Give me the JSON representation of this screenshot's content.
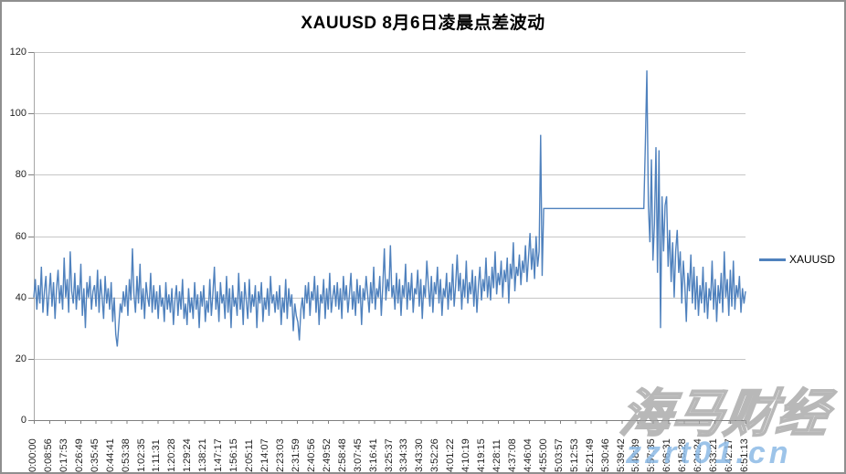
{
  "title": "XAUUSD 8月6日凌晨点差波动",
  "legend": {
    "label": "XAUUSD"
  },
  "watermarks": {
    "brand": "海马财经",
    "site": "zzrt01.cn"
  },
  "colors": {
    "series_line": "#4f81bd",
    "gridline": "#c6c6c6",
    "axis_line": "#808080",
    "left_axis_line": "#a6a6a6",
    "tick": "#808080",
    "frame_border": "#8f8f8f",
    "watermark_blue": "#8cbae6"
  },
  "chart_data": {
    "type": "line",
    "title": "XAUUSD 8月6日凌晨点差波动",
    "xlabel": "",
    "ylabel": "",
    "ylim": [
      0,
      120
    ],
    "yticks": [
      0,
      20,
      40,
      60,
      80,
      100,
      120
    ],
    "grid": true,
    "legend_position": "right",
    "xtick_labels": [
      "0:00:00",
      "0:08:56",
      "0:17:53",
      "0:26:49",
      "0:35:45",
      "0:44:41",
      "0:53:38",
      "1:02:35",
      "1:11:31",
      "1:20:28",
      "1:29:24",
      "1:38:21",
      "1:47:17",
      "1:56:15",
      "2:05:11",
      "2:14:07",
      "2:23:03",
      "2:31:59",
      "2:40:56",
      "2:49:52",
      "2:58:48",
      "3:07:45",
      "3:16:41",
      "3:25:37",
      "3:34:33",
      "3:43:30",
      "3:52:26",
      "4:01:22",
      "4:10:19",
      "4:19:15",
      "4:28:11",
      "4:37:08",
      "4:46:04",
      "4:55:00",
      "5:03:57",
      "5:12:53",
      "5:21:49",
      "5:30:46",
      "5:39:42",
      "5:48:39",
      "5:57:35",
      "6:06:31",
      "6:15:28",
      "6:24:24",
      "6:33:21",
      "6:42:17",
      "6:51:13"
    ],
    "series": [
      {
        "name": "XAUUSD",
        "color": "#4f81bd",
        "sample_interval_seconds": 52.6,
        "values": [
          40,
          46,
          36,
          44,
          38,
          50,
          35,
          42,
          47,
          34,
          41,
          48,
          37,
          45,
          33,
          43,
          49,
          38,
          44,
          36,
          53,
          40,
          46,
          35,
          55,
          42,
          38,
          48,
          36,
          44,
          39,
          51,
          34,
          43,
          30,
          45,
          40,
          47,
          36,
          42,
          44,
          37,
          49,
          35,
          46,
          40,
          33,
          47,
          38,
          43,
          36,
          45,
          32,
          40,
          28,
          24,
          31,
          38,
          35,
          42,
          37,
          44,
          34,
          46,
          39,
          56,
          41,
          35,
          47,
          38,
          51,
          36,
          43,
          33,
          45,
          40,
          37,
          48,
          35,
          44,
          36,
          42,
          33,
          44,
          37,
          40,
          32,
          45,
          36,
          41,
          35,
          43,
          31,
          39,
          44,
          34,
          42,
          36,
          46,
          33,
          38,
          31,
          43,
          35,
          40,
          33,
          45,
          36,
          41,
          30,
          42,
          37,
          44,
          32,
          39,
          35,
          46,
          34,
          41,
          50,
          36,
          42,
          32,
          45,
          38,
          41,
          33,
          47,
          35,
          43,
          30,
          44,
          37,
          40,
          34,
          48,
          36,
          42,
          31,
          45,
          39,
          33,
          46,
          35,
          41,
          37,
          44,
          30,
          42,
          38,
          45,
          32,
          40,
          36,
          43,
          34,
          47,
          38,
          41,
          35,
          42,
          36,
          44,
          31,
          40,
          35,
          46,
          33,
          43,
          37,
          41,
          29,
          38,
          34,
          32,
          26,
          36,
          40,
          33,
          44,
          38,
          45,
          34,
          42,
          39,
          47,
          35,
          44,
          31,
          41,
          38,
          46,
          33,
          43,
          36,
          48,
          35,
          40,
          44,
          37,
          45,
          36,
          43,
          33,
          47,
          39,
          44,
          35,
          41,
          48,
          36,
          42,
          34,
          46,
          38,
          44,
          31,
          43,
          39,
          47,
          41,
          35,
          45,
          38,
          50,
          36,
          43,
          40,
          47,
          34,
          44,
          56,
          39,
          46,
          42,
          57,
          40,
          44,
          36,
          48,
          38,
          46,
          34,
          44,
          40,
          51,
          36,
          45,
          39,
          48,
          35,
          43,
          41,
          49,
          37,
          46,
          33,
          44,
          40,
          52,
          44,
          37,
          47,
          35,
          45,
          41,
          50,
          38,
          46,
          34,
          43,
          40,
          48,
          36,
          45,
          39,
          51,
          37,
          44,
          54,
          42,
          48,
          36,
          46,
          40,
          52,
          38,
          45,
          41,
          49,
          37,
          47,
          35,
          44,
          50,
          39,
          46,
          42,
          53,
          40,
          47,
          39,
          50,
          43,
          55,
          41,
          48,
          44,
          52,
          40,
          49,
          45,
          53,
          38,
          51,
          46,
          58,
          42,
          50,
          47,
          54,
          44,
          52,
          48,
          57,
          45,
          53,
          61,
          49,
          56,
          46,
          60,
          50,
          55,
          93,
          47,
          69,
          69,
          69,
          69,
          69,
          69,
          69,
          69,
          69,
          69,
          69,
          69,
          69,
          69,
          69,
          69,
          69,
          69,
          69,
          69,
          69,
          69,
          69,
          69,
          69,
          69,
          69,
          69,
          69,
          69,
          69,
          69,
          69,
          69,
          69,
          69,
          69,
          69,
          69,
          69,
          69,
          69,
          69,
          69,
          69,
          69,
          69,
          69,
          69,
          69,
          69,
          69,
          69,
          69,
          69,
          69,
          69,
          69,
          69,
          69,
          69,
          69,
          69,
          69,
          69,
          69,
          69,
          90,
          114,
          70,
          58,
          85,
          52,
          64,
          89,
          48,
          88,
          30,
          73,
          55,
          70,
          73,
          50,
          62,
          45,
          58,
          40,
          55,
          62,
          48,
          55,
          38,
          52,
          44,
          32,
          48,
          42,
          54,
          38,
          50,
          36,
          47,
          34,
          44,
          38,
          50,
          35,
          45,
          33,
          43,
          39,
          52,
          36,
          46,
          32,
          44,
          38,
          48,
          35,
          55,
          40,
          46,
          34,
          49,
          37,
          52,
          36,
          44,
          40,
          47,
          35,
          43,
          38,
          42
        ]
      }
    ]
  }
}
